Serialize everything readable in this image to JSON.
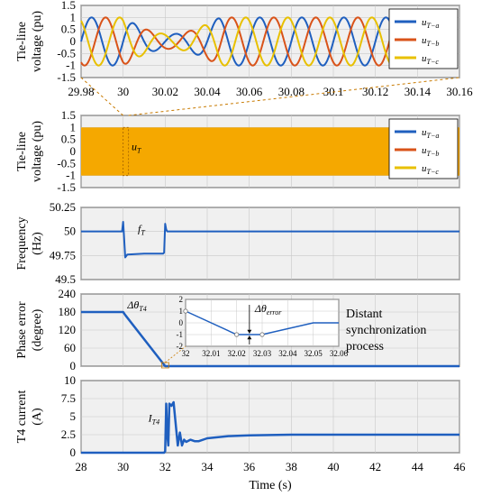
{
  "colors": {
    "phase_a": "#1f5fbf",
    "phase_b": "#d95319",
    "phase_c": "#e8c000",
    "band": "#f5a800",
    "grid": "#c8c8c8",
    "plot_bg": "#f0f0f0"
  },
  "chart_data": [
    {
      "id": "zoom-voltage",
      "type": "line",
      "ylabel": "Tie-line voltage (pu)",
      "xlim": [
        29.98,
        30.16
      ],
      "ylim": [
        -1.5,
        1.5
      ],
      "xticks": [
        "29.98",
        "30",
        "30.02",
        "30.04",
        "30.06",
        "30.08",
        "30.1",
        "30.12",
        "30.14",
        "30.16"
      ],
      "yticks": [
        "1.5",
        "1",
        "0.5",
        "0",
        "-0.5",
        "-1",
        "-1.5"
      ],
      "legend": [
        "u_{T−a}",
        "u_{T−b}",
        "u_{T−c}"
      ],
      "legend_position": "right",
      "series": [
        {
          "name": "u_{T−a}",
          "phase_deg": 0
        },
        {
          "name": "u_{T−b}",
          "phase_deg": -120
        },
        {
          "name": "u_{T−c}",
          "phase_deg": 120
        }
      ],
      "amplitude_pu": 1.0,
      "frequency_hz": 50,
      "disturbance_window": [
        30.0,
        30.06
      ]
    },
    {
      "id": "voltage",
      "type": "line",
      "ylabel": "Tie-line voltage (pu)",
      "xlim": [
        28,
        46
      ],
      "ylim": [
        -1.5,
        1.5
      ],
      "yticks": [
        "1.5",
        "1",
        "0.5",
        "0",
        "-0.5",
        "-1",
        "-1.5"
      ],
      "legend": [
        "u_{T−a}",
        "u_{T−b}",
        "u_{T−c}"
      ],
      "legend_position": "right",
      "annotation": "u_T",
      "band_range": [
        -1,
        1
      ]
    },
    {
      "id": "frequency",
      "type": "line",
      "ylabel": "Frequency (Hz)",
      "xlim": [
        28,
        46
      ],
      "ylim": [
        49.5,
        50.25
      ],
      "yticks": [
        "50.25",
        "50",
        "49.75",
        "49.5"
      ],
      "annotation": "f_T",
      "x": [
        28,
        29.95,
        30,
        30.05,
        30.1,
        30.2,
        31,
        31.9,
        31.95,
        32.0,
        32.05,
        32.1,
        46
      ],
      "y": [
        50,
        50,
        50.1,
        49.92,
        49.73,
        49.76,
        49.77,
        49.77,
        49.78,
        50.08,
        50.02,
        50.0,
        50.0
      ]
    },
    {
      "id": "phase-error",
      "type": "line",
      "ylabel": "Phase error (degree)",
      "xlim": [
        28,
        46
      ],
      "ylim": [
        0,
        240
      ],
      "yticks": [
        "240",
        "180",
        "120",
        "60",
        "0"
      ],
      "annotation": "Δθ_T4",
      "text": "Distant synchronization process",
      "x": [
        28,
        30,
        30.1,
        32,
        46
      ],
      "y": [
        180,
        180,
        170,
        0,
        0
      ],
      "inset": {
        "xlim": [
          32,
          32.06
        ],
        "ylim": [
          -2,
          2
        ],
        "xticks": [
          "32",
          "32.01",
          "32.02",
          "32.03",
          "32.04",
          "32.05",
          "32.06"
        ],
        "yticks": [
          "2",
          "1",
          "0",
          "-1",
          "-2"
        ],
        "annotation": "Δθ_error",
        "x": [
          32.0,
          32.02,
          32.03,
          32.05,
          32.06
        ],
        "y": [
          1,
          -1,
          -1,
          0,
          0
        ]
      }
    },
    {
      "id": "current",
      "type": "line",
      "ylabel": "T4 current (A)",
      "xlabel": "Time (s)",
      "xlim": [
        28,
        46
      ],
      "ylim": [
        0,
        10
      ],
      "xticks": [
        "28",
        "30",
        "32",
        "34",
        "36",
        "38",
        "40",
        "42",
        "44",
        "46"
      ],
      "yticks": [
        "10",
        "7.5",
        "5",
        "2.5",
        "0"
      ],
      "annotation": "I_T4",
      "x": [
        28,
        31.95,
        32.0,
        32.05,
        32.1,
        32.15,
        32.2,
        32.3,
        32.4,
        32.5,
        32.6,
        32.7,
        32.8,
        32.9,
        33.0,
        33.2,
        33.4,
        33.6,
        34.0,
        35.0,
        36.0,
        38.0,
        46
      ],
      "y": [
        0,
        0,
        0.2,
        6.8,
        2.5,
        1.0,
        6.8,
        6.5,
        7.0,
        4.0,
        1.0,
        2.8,
        1.0,
        1.8,
        1.5,
        1.8,
        1.6,
        1.6,
        2.0,
        2.3,
        2.4,
        2.5,
        2.5
      ]
    }
  ]
}
